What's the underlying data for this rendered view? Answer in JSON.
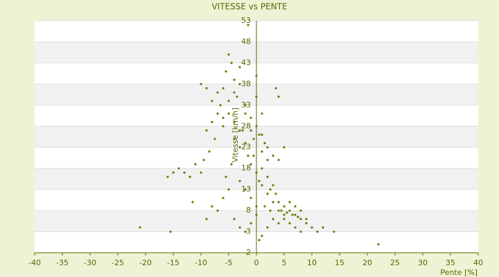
{
  "chart_data": {
    "type": "scatter",
    "title": "VITESSE vs PENTE",
    "x_label": "Pente [%]",
    "y_label": "Vitesse [km/h]",
    "color": "#6b7a00",
    "x": [
      -5,
      -4.5,
      -5.5,
      -4,
      -6,
      -3,
      -7,
      -8,
      -9,
      -10,
      -6.5,
      -5,
      -4,
      -3.5,
      -2,
      -1,
      -0.5,
      0,
      0.5,
      1,
      1.5,
      2,
      -2.5,
      -3,
      -1.5,
      -6,
      -7.5,
      -8.5,
      -9.5,
      -4.5,
      -5.5,
      -3,
      -2,
      -1,
      0,
      1,
      2,
      3,
      4,
      5,
      6,
      7,
      8,
      9,
      10,
      11,
      12,
      14,
      4.5,
      5.5,
      6.5,
      7.5,
      3.5,
      2.5,
      6,
      7,
      8,
      5,
      4,
      9,
      -10,
      -11,
      -12,
      -13,
      -14,
      -15,
      -16,
      -21,
      -15.5,
      -11.5,
      -8,
      -9,
      -7,
      -6,
      -5,
      -4,
      -3,
      -2,
      -1,
      0,
      1,
      2,
      3,
      -2,
      -1,
      0,
      1,
      -3,
      -4,
      -5,
      -6,
      0,
      1,
      2,
      3,
      4,
      5,
      22,
      -1,
      0,
      0.5,
      1,
      2,
      3,
      4,
      5,
      6,
      7,
      8,
      -4,
      -3,
      -2,
      -7,
      -8,
      -9,
      3.5,
      4,
      -1.5,
      0.5,
      1.5,
      2.5,
      -0.5
    ],
    "values": [
      45,
      43,
      41,
      39,
      37,
      38,
      36,
      34,
      37,
      38,
      33,
      31,
      29,
      35,
      31,
      27,
      25,
      28,
      26,
      22,
      24,
      20,
      27,
      23,
      21,
      28,
      25,
      22,
      20,
      19,
      16,
      15,
      13,
      11,
      9,
      18,
      16,
      14,
      10,
      9,
      8,
      7,
      6,
      5,
      4,
      3,
      4,
      3,
      8,
      7.5,
      7,
      6.5,
      12,
      13,
      10,
      9,
      8,
      6,
      5,
      6,
      17,
      19,
      16,
      17,
      18,
      17,
      16,
      4,
      3,
      10,
      9,
      6,
      8,
      11,
      13,
      6,
      4,
      3,
      5,
      7,
      2,
      4,
      6,
      33,
      30,
      35,
      31,
      42,
      36,
      34,
      30,
      40,
      26,
      23,
      21,
      20,
      23,
      0,
      19,
      17,
      15,
      14,
      12,
      10,
      8,
      7,
      5,
      4,
      3,
      25,
      27,
      24,
      31,
      29,
      27,
      37,
      35,
      52,
      1,
      9,
      8,
      21
    ],
    "xlim": [
      -40,
      40
    ],
    "xticks": [
      -40,
      -35,
      -30,
      -25,
      -20,
      -15,
      -10,
      -5,
      0,
      5,
      10,
      15,
      20,
      25,
      30,
      35,
      40
    ],
    "ylim": [
      -2,
      53
    ],
    "yticks": [
      -2,
      3,
      8,
      13,
      18,
      23,
      28,
      33,
      38,
      43,
      48,
      53
    ],
    "grid": true
  }
}
